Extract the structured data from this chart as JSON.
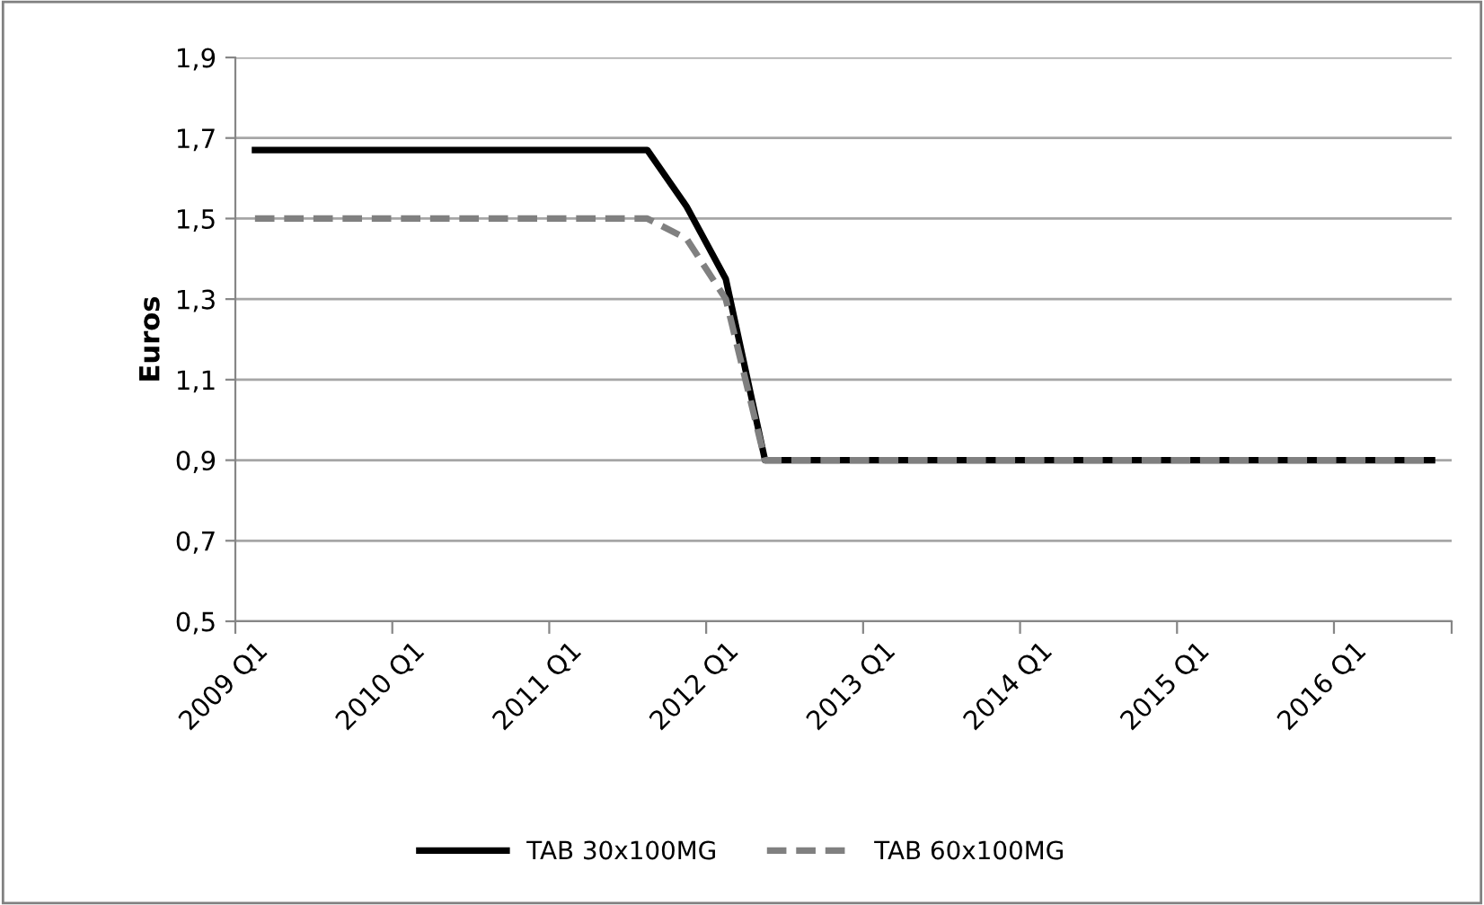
{
  "chart_data": {
    "type": "line",
    "ylabel": "Euros",
    "categories": [
      "2009 Q1",
      null,
      null,
      null,
      "2010 Q1",
      null,
      null,
      null,
      "2011 Q1",
      null,
      null,
      null,
      "2012 Q1",
      null,
      null,
      null,
      "2013 Q1",
      null,
      null,
      null,
      "2014 Q1",
      null,
      null,
      null,
      "2015 Q1",
      null,
      null,
      null,
      "2016 Q1",
      null,
      null
    ],
    "series": [
      {
        "name": "TAB 30x100MG",
        "color": "#000000",
        "line_style": "solid",
        "values": [
          1.67,
          1.67,
          1.67,
          1.67,
          1.67,
          1.67,
          1.67,
          1.67,
          1.67,
          1.67,
          1.67,
          1.53,
          1.35,
          0.9,
          0.9,
          0.9,
          0.9,
          0.9,
          0.9,
          0.9,
          0.9,
          0.9,
          0.9,
          0.9,
          0.9,
          0.9,
          0.9,
          0.9,
          0.9,
          0.9,
          0.9
        ]
      },
      {
        "name": "TAB 60x100MG",
        "color": "#808080",
        "line_style": "dashed",
        "values": [
          1.5,
          1.5,
          1.5,
          1.5,
          1.5,
          1.5,
          1.5,
          1.5,
          1.5,
          1.5,
          1.5,
          1.45,
          1.3,
          0.9,
          0.9,
          0.9,
          0.9,
          0.9,
          0.9,
          0.9,
          0.9,
          0.9,
          0.9,
          0.9,
          0.9,
          0.9,
          0.9,
          0.9,
          0.9,
          0.9,
          0.9
        ]
      }
    ],
    "ylim": [
      0.5,
      1.9
    ],
    "yticks": [
      {
        "value": 0.5,
        "label": "0,5"
      },
      {
        "value": 0.7,
        "label": "0,7"
      },
      {
        "value": 0.9,
        "label": "0,9"
      },
      {
        "value": 1.1,
        "label": "1,1"
      },
      {
        "value": 1.3,
        "label": "1,3"
      },
      {
        "value": 1.5,
        "label": "1,5"
      },
      {
        "value": 1.7,
        "label": "1,7"
      },
      {
        "value": 1.9,
        "label": "1,9"
      }
    ],
    "grid": "y",
    "legend": "bottom",
    "marker": "none"
  }
}
